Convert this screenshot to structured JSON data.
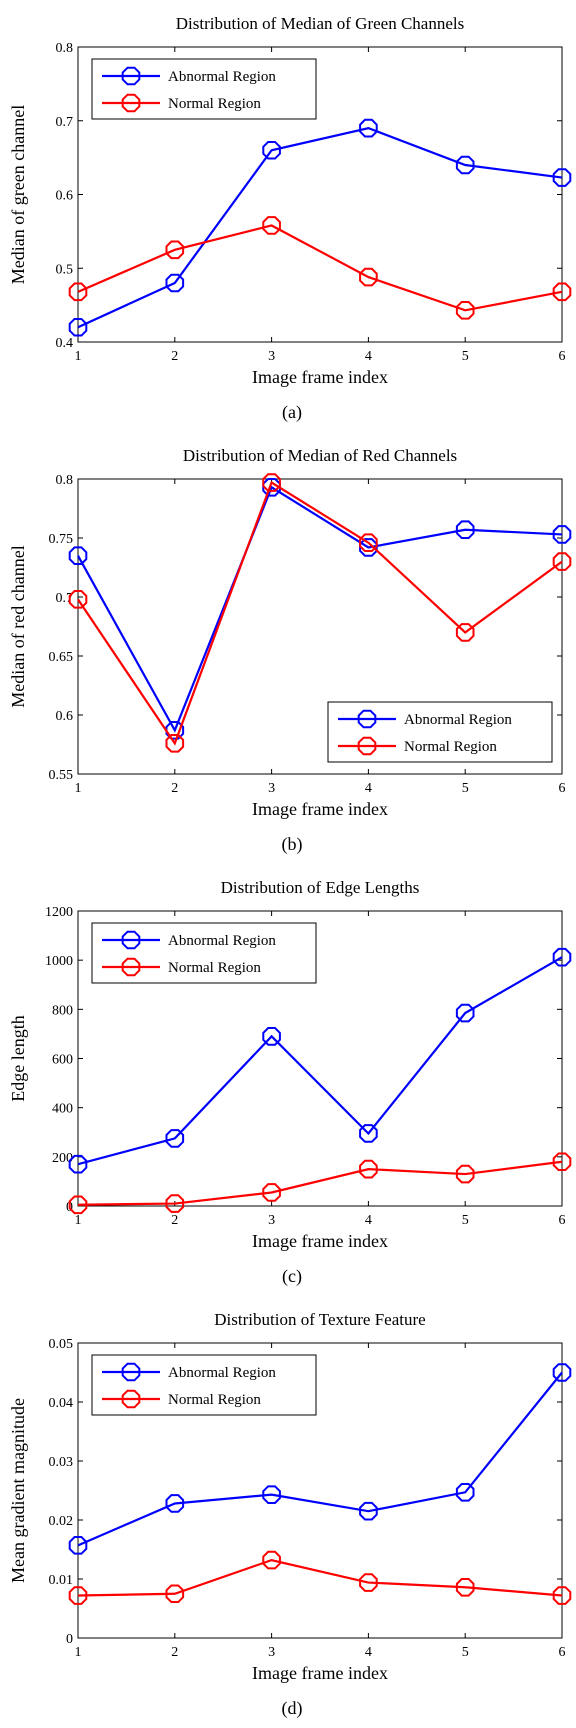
{
  "chart_data": [
    {
      "type": "line",
      "title": "Distribution of Median of Green Channels",
      "xlabel": "Image frame index",
      "ylabel": "Median of green channel",
      "caption": "(a)",
      "x": [
        1,
        2,
        3,
        4,
        5,
        6
      ],
      "xlim": [
        1,
        6
      ],
      "ylim": [
        0.4,
        0.8
      ],
      "xticks": [
        "1",
        "2",
        "3",
        "4",
        "5",
        "6"
      ],
      "yticks": [
        "0.4",
        "0.5",
        "0.6",
        "0.7",
        "0.8"
      ],
      "legend_position": "top-left",
      "series": [
        {
          "name": "Abnormal Region",
          "color": "#0000ff",
          "values": [
            0.42,
            0.48,
            0.66,
            0.69,
            0.64,
            0.623
          ]
        },
        {
          "name": "Normal Region",
          "color": "#ff0000",
          "values": [
            0.468,
            0.525,
            0.558,
            0.488,
            0.443,
            0.468
          ]
        }
      ]
    },
    {
      "type": "line",
      "title": "Distribution of Median of Red Channels",
      "xlabel": "Image frame index",
      "ylabel": "Median of red channel",
      "caption": "(b)",
      "x": [
        1,
        2,
        3,
        4,
        5,
        6
      ],
      "xlim": [
        1,
        6
      ],
      "ylim": [
        0.55,
        0.8
      ],
      "xticks": [
        "1",
        "2",
        "3",
        "4",
        "5",
        "6"
      ],
      "yticks": [
        "0.55",
        "0.6",
        "0.65",
        "0.7",
        "0.75",
        "0.8"
      ],
      "legend_position": "bottom-right",
      "series": [
        {
          "name": "Abnormal Region",
          "color": "#0000ff",
          "values": [
            0.735,
            0.587,
            0.793,
            0.742,
            0.757,
            0.753
          ]
        },
        {
          "name": "Normal Region",
          "color": "#ff0000",
          "values": [
            0.698,
            0.576,
            0.797,
            0.746,
            0.67,
            0.73
          ]
        }
      ]
    },
    {
      "type": "line",
      "title": "Distribution of Edge Lengths",
      "xlabel": "Image frame index",
      "ylabel": "Edge length",
      "caption": "(c)",
      "x": [
        1,
        2,
        3,
        4,
        5,
        6
      ],
      "xlim": [
        1,
        6
      ],
      "ylim": [
        0,
        1200
      ],
      "xticks": [
        "1",
        "2",
        "3",
        "4",
        "5",
        "6"
      ],
      "yticks": [
        "0",
        "200",
        "400",
        "600",
        "800",
        "1000",
        "1200"
      ],
      "legend_position": "top-left",
      "series": [
        {
          "name": "Abnormal Region",
          "color": "#0000ff",
          "values": [
            170,
            275,
            690,
            295,
            785,
            1012
          ]
        },
        {
          "name": "Normal Region",
          "color": "#ff0000",
          "values": [
            5,
            10,
            55,
            150,
            130,
            180
          ]
        }
      ]
    },
    {
      "type": "line",
      "title": "Distribution of Texture Feature",
      "xlabel": "Image frame index",
      "ylabel": "Mean gradient magnitude",
      "caption": "(d)",
      "x": [
        1,
        2,
        3,
        4,
        5,
        6
      ],
      "xlim": [
        1,
        6
      ],
      "ylim": [
        0,
        0.05
      ],
      "xticks": [
        "1",
        "2",
        "3",
        "4",
        "5",
        "6"
      ],
      "yticks": [
        "0",
        "0.01",
        "0.02",
        "0.03",
        "0.04",
        "0.05"
      ],
      "legend_position": "top-left",
      "series": [
        {
          "name": "Abnormal Region",
          "color": "#0000ff",
          "values": [
            0.0157,
            0.0228,
            0.0243,
            0.0215,
            0.0247,
            0.045
          ]
        },
        {
          "name": "Normal Region",
          "color": "#ff0000",
          "values": [
            0.0072,
            0.0075,
            0.0132,
            0.0094,
            0.0086,
            0.0072
          ]
        }
      ]
    }
  ]
}
